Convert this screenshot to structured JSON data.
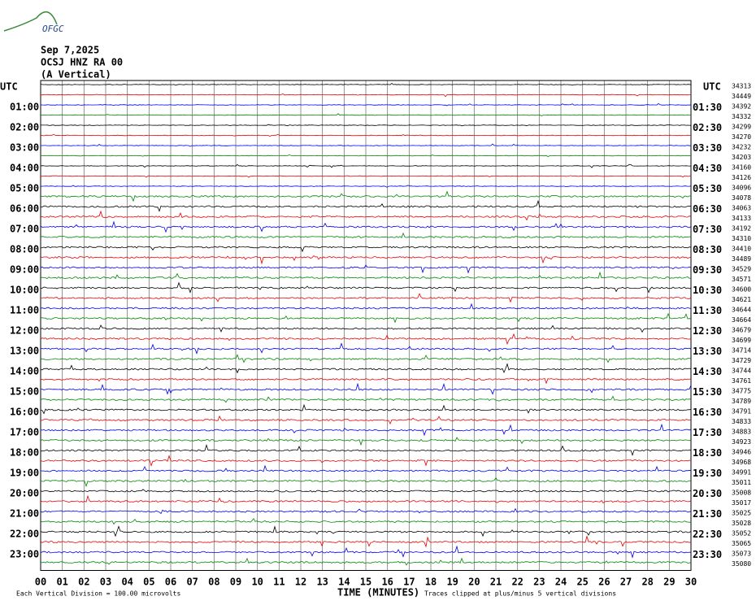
{
  "header": {
    "logo": "OFGC",
    "date": "Sep 7,2025",
    "station": "OCSJ HNZ RA 00",
    "component": "(A Vertical)"
  },
  "left_title": "UTC",
  "right_title": "UTC",
  "left_labels": [
    "01:00",
    "02:00",
    "03:00",
    "04:00",
    "05:00",
    "06:00",
    "07:00",
    "08:00",
    "09:00",
    "10:00",
    "11:00",
    "12:00",
    "13:00",
    "14:00",
    "15:00",
    "16:00",
    "17:00",
    "18:00",
    "19:00",
    "20:00",
    "21:00",
    "22:00",
    "23:00"
  ],
  "right_labels": [
    "01:30",
    "02:30",
    "03:30",
    "04:30",
    "05:30",
    "06:30",
    "07:30",
    "08:30",
    "09:30",
    "10:30",
    "11:30",
    "12:30",
    "13:30",
    "14:30",
    "15:30",
    "16:30",
    "17:30",
    "18:30",
    "19:30",
    "20:30",
    "21:30",
    "22:30",
    "23:30"
  ],
  "trace_counts": [
    34313,
    34449,
    34392,
    34332,
    34299,
    34270,
    34232,
    34203,
    34160,
    34126,
    34096,
    34078,
    34063,
    34133,
    34192,
    34310,
    34410,
    34489,
    34529,
    34571,
    34600,
    34621,
    34644,
    34664,
    34679,
    34699,
    34714,
    34729,
    34744,
    34761,
    34775,
    34789,
    34791,
    34833,
    34883,
    34923,
    34946,
    34968,
    34991,
    35011,
    35008,
    35017,
    35025,
    35028,
    35052,
    35065,
    35073,
    35080
  ],
  "x_ticks": [
    "00",
    "01",
    "02",
    "03",
    "04",
    "05",
    "06",
    "07",
    "08",
    "09",
    "10",
    "11",
    "12",
    "13",
    "14",
    "15",
    "16",
    "17",
    "18",
    "19",
    "20",
    "21",
    "22",
    "23",
    "24",
    "25",
    "26",
    "27",
    "28",
    "29",
    "30"
  ],
  "footer": {
    "scale": "Each Vertical Division =  100.00 microvolts",
    "axis_title": "TIME (MINUTES)",
    "clip_note": "Traces clipped at plus/minus 5 vertical divisions"
  }
}
